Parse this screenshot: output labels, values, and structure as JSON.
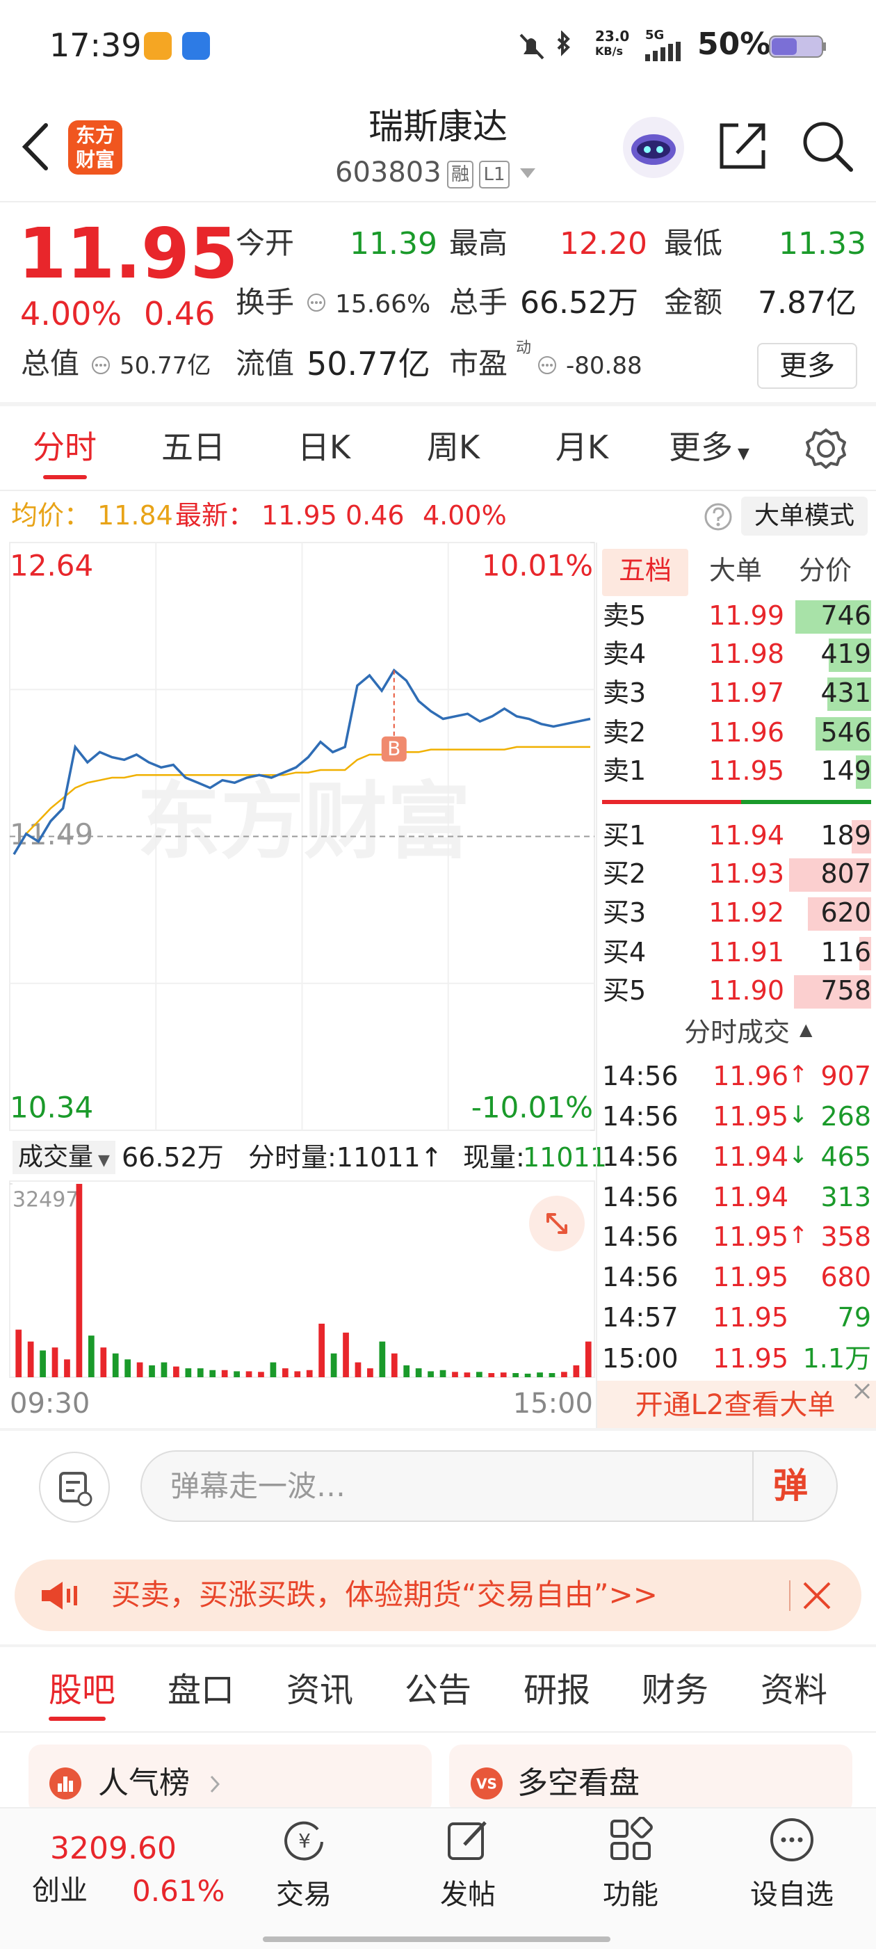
{
  "status_bar": {
    "time": "17:39",
    "net_speed": "23.0",
    "net_speed_unit": "KB/s",
    "network": "5G",
    "battery": "50%"
  },
  "header": {
    "logo": "东方财富",
    "name": "瑞斯康达",
    "code": "603803",
    "tags": [
      "融",
      "L1"
    ]
  },
  "quote": {
    "price": "11.95",
    "change_pct": "4.00%",
    "change": "0.46",
    "stats": [
      {
        "label": "今开",
        "value": "11.39"
      },
      {
        "label": "最高",
        "value": "12.20"
      },
      {
        "label": "最低",
        "value": "11.33"
      },
      {
        "label": "换手",
        "value": "15.66%"
      },
      {
        "label": "总手",
        "value": "66.52万"
      },
      {
        "label": "金额",
        "value": "7.87亿"
      },
      {
        "label": "总值",
        "value": "50.77亿"
      },
      {
        "label": "流值",
        "value": "50.77亿"
      },
      {
        "label": "市盈",
        "sup": "动",
        "value": "-80.88"
      }
    ],
    "more": "更多"
  },
  "period_tabs": [
    "分时",
    "五日",
    "日K",
    "周K",
    "月K",
    "更多"
  ],
  "info_line": {
    "avg_label": "均价：",
    "avg": "11.84",
    "latest_label": "最新：",
    "latest": "11.95",
    "change": "0.46",
    "change_pct": "4.00%",
    "mode_button": "大单模式"
  },
  "watermark": "东方财富",
  "chart_data": [
    {
      "type": "line",
      "categories": [
        null,
        null,
        null,
        null,
        null,
        null,
        null,
        null,
        null,
        null,
        null,
        null,
        null,
        null,
        null,
        null,
        null,
        null,
        null,
        null,
        null,
        null,
        null,
        null,
        null,
        null,
        null,
        null,
        null,
        null,
        null,
        null,
        null,
        null,
        null,
        null,
        null,
        null,
        null,
        null,
        null,
        null,
        null,
        null,
        null,
        null,
        null,
        null
      ],
      "series": [
        {
          "color": "#2f6db5",
          "values": [
            11.42,
            11.5,
            11.47,
            11.55,
            11.6,
            11.84,
            11.78,
            11.82,
            11.8,
            11.79,
            11.81,
            11.78,
            11.76,
            11.77,
            11.72,
            11.7,
            11.68,
            11.71,
            11.7,
            11.72,
            11.73,
            11.72,
            11.74,
            11.76,
            11.8,
            11.86,
            11.82,
            11.84,
            12.08,
            12.12,
            12.06,
            12.14,
            12.1,
            12.02,
            11.98,
            11.95,
            11.96,
            11.97,
            11.94,
            11.96,
            11.99,
            11.96,
            11.95,
            11.93,
            11.92,
            11.93,
            11.94,
            11.95
          ]
        },
        {
          "color": "#f0b000",
          "values": [
            11.42,
            11.5,
            11.55,
            11.6,
            11.64,
            11.68,
            11.7,
            11.71,
            11.72,
            11.72,
            11.73,
            11.73,
            11.73,
            11.73,
            11.73,
            11.73,
            11.73,
            11.73,
            11.73,
            11.73,
            11.73,
            11.73,
            11.73,
            11.74,
            11.74,
            11.75,
            11.75,
            11.75,
            11.79,
            11.81,
            11.81,
            11.82,
            11.82,
            11.82,
            11.83,
            11.83,
            11.83,
            11.83,
            11.83,
            11.83,
            11.83,
            11.84,
            11.84,
            11.84,
            11.84,
            11.84,
            11.84,
            11.84
          ]
        }
      ],
      "ylim": [
        10.34,
        12.64
      ],
      "yticks": [
        12.64,
        11.49,
        10.34
      ],
      "y2lim": [
        -10.01,
        10.01
      ],
      "y2ticks": [
        {
          "value": 10.01,
          "label": "10.01%"
        },
        {
          "value": -10.01,
          "label": "-10.01%"
        }
      ],
      "markers": [
        {
          "label": "B",
          "at": 31,
          "value": 12.14
        }
      ]
    },
    {
      "type": "bar",
      "categories": [
        "09:30",
        null,
        null,
        null,
        null,
        null,
        null,
        null,
        null,
        null,
        null,
        null,
        null,
        null,
        null,
        null,
        null,
        null,
        null,
        null,
        null,
        null,
        null,
        null,
        null,
        null,
        null,
        null,
        null,
        null,
        null,
        null,
        null,
        null,
        null,
        null,
        null,
        null,
        null,
        null,
        null,
        null,
        null,
        null,
        null,
        null,
        null,
        "15:00"
      ],
      "values": [
        8000,
        6000,
        4500,
        5000,
        3000,
        32497,
        7000,
        5000,
        4000,
        3000,
        2500,
        2000,
        2500,
        1800,
        1500,
        1500,
        1200,
        1200,
        1000,
        1000,
        900,
        2500,
        1500,
        1000,
        1200,
        9000,
        4000,
        7500,
        2500,
        1500,
        6000,
        4000,
        2000,
        1500,
        1000,
        1200,
        900,
        800,
        900,
        700,
        800,
        700,
        600,
        800,
        700,
        900,
        2000,
        6000
      ],
      "ylim": [
        0,
        32497
      ],
      "yticks": [
        32497
      ],
      "up_color": "#e8262b",
      "down_color": "#1a9a2a"
    }
  ],
  "volume_header": {
    "selector": "成交量",
    "total": "66.52万",
    "tick_volume": "分时量:11011↑",
    "current_label": "现量:",
    "current_value": "11011"
  },
  "order_book": {
    "tabs": [
      "五档",
      "大单",
      "分价"
    ],
    "asks": [
      {
        "label": "卖5",
        "price": "11.99",
        "volume": 746
      },
      {
        "label": "卖4",
        "price": "11.98",
        "volume": 419
      },
      {
        "label": "卖3",
        "price": "11.97",
        "volume": 431
      },
      {
        "label": "卖2",
        "price": "11.96",
        "volume": 546
      },
      {
        "label": "卖1",
        "price": "11.95",
        "volume": 149
      }
    ],
    "bids": [
      {
        "label": "买1",
        "price": "11.94",
        "volume": 189
      },
      {
        "label": "买2",
        "price": "11.93",
        "volume": 807
      },
      {
        "label": "买3",
        "price": "11.92",
        "volume": 620
      },
      {
        "label": "买4",
        "price": "11.91",
        "volume": 116
      },
      {
        "label": "买5",
        "price": "11.90",
        "volume": 758
      }
    ]
  },
  "trades": {
    "title": "分时成交",
    "rows": [
      {
        "time": "14:56",
        "price": "11.96",
        "arrow": "↑",
        "volume": "907",
        "color": "#e8262b"
      },
      {
        "time": "14:56",
        "price": "11.95",
        "arrow": "↓",
        "volume": "268",
        "color": "#1a9a2a"
      },
      {
        "time": "14:56",
        "price": "11.94",
        "arrow": "↓",
        "volume": "465",
        "color": "#1a9a2a"
      },
      {
        "time": "14:56",
        "price": "11.94",
        "volume": "313",
        "color": "#1a9a2a"
      },
      {
        "time": "14:56",
        "price": "11.95",
        "arrow": "↑",
        "volume": "358",
        "color": "#e8262b"
      },
      {
        "time": "14:56",
        "price": "11.95",
        "volume": "680",
        "color": "#e8262b"
      },
      {
        "time": "14:57",
        "price": "11.95",
        "volume": "79",
        "color": "#1a9a2a"
      },
      {
        "time": "15:00",
        "price": "11.95",
        "volume": "1.1万",
        "color": "#1a9a2a"
      }
    ]
  },
  "l2_promo": "开通L2查看大单",
  "danmaku": {
    "placeholder": "弹幕走一波…",
    "button": "弹"
  },
  "banner": "买卖，买涨买跌，体验期货“交易自由”>>",
  "section_tabs": [
    "股吧",
    "盘口",
    "资讯",
    "公告",
    "研报",
    "财务",
    "资料"
  ],
  "cards": [
    "人气榜",
    "多空看盘"
  ],
  "bottom_nav": {
    "index_value": "3209.60",
    "index_name": "创业",
    "index_change": "0.61%",
    "items": [
      "交易",
      "发帖",
      "功能",
      "设自选"
    ]
  }
}
